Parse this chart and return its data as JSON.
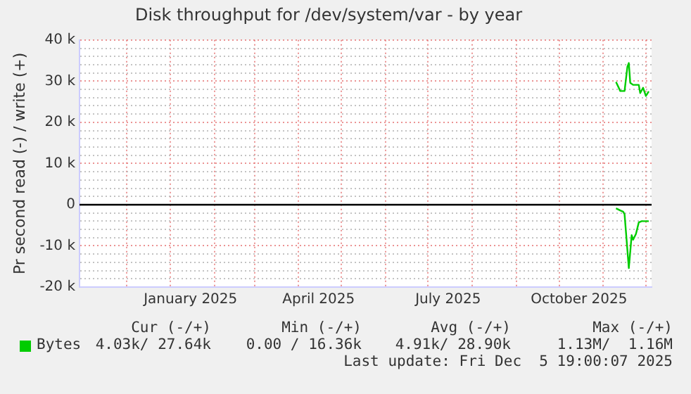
{
  "chart_data": {
    "type": "line",
    "title": "Disk throughput for /dev/system/var - by year",
    "ylabel": "Pr second read (-) / write (+)",
    "xlim": [
      "2024-10-29",
      "2025-12-05"
    ],
    "xticks": [
      {
        "value": "2024-12-01",
        "label": null
      },
      {
        "value": "2025-01-01",
        "label": null
      },
      {
        "value": "2025-01-15",
        "label": "January 2025"
      },
      {
        "value": "2025-02-01",
        "label": null
      },
      {
        "value": "2025-03-01",
        "label": null
      },
      {
        "value": "2025-04-01",
        "label": null
      },
      {
        "value": "2025-04-15",
        "label": "April 2025"
      },
      {
        "value": "2025-05-01",
        "label": null
      },
      {
        "value": "2025-06-01",
        "label": null
      },
      {
        "value": "2025-07-01",
        "label": null
      },
      {
        "value": "2025-07-15",
        "label": "July 2025"
      },
      {
        "value": "2025-08-01",
        "label": null
      },
      {
        "value": "2025-09-01",
        "label": null
      },
      {
        "value": "2025-10-01",
        "label": null
      },
      {
        "value": "2025-10-15",
        "label": "October 2025"
      },
      {
        "value": "2025-11-01",
        "label": null
      },
      {
        "value": "2025-12-01",
        "label": null
      }
    ],
    "ylim": [
      -20000,
      40000
    ],
    "yticks": [
      {
        "value": -20000,
        "label": "-20 k"
      },
      {
        "value": -18000,
        "label": null
      },
      {
        "value": -16000,
        "label": null
      },
      {
        "value": -14000,
        "label": null
      },
      {
        "value": -12000,
        "label": null
      },
      {
        "value": -10000,
        "label": "-10 k"
      },
      {
        "value": -8000,
        "label": null
      },
      {
        "value": -6000,
        "label": null
      },
      {
        "value": -4000,
        "label": null
      },
      {
        "value": -2000,
        "label": null
      },
      {
        "value": 0,
        "label": "0"
      },
      {
        "value": 2000,
        "label": null
      },
      {
        "value": 4000,
        "label": null
      },
      {
        "value": 6000,
        "label": null
      },
      {
        "value": 8000,
        "label": null
      },
      {
        "value": 10000,
        "label": "10 k"
      },
      {
        "value": 12000,
        "label": null
      },
      {
        "value": 14000,
        "label": null
      },
      {
        "value": 16000,
        "label": null
      },
      {
        "value": 18000,
        "label": null
      },
      {
        "value": 20000,
        "label": "20 k"
      },
      {
        "value": 22000,
        "label": null
      },
      {
        "value": 24000,
        "label": null
      },
      {
        "value": 26000,
        "label": null
      },
      {
        "value": 28000,
        "label": null
      },
      {
        "value": 30000,
        "label": "30 k"
      },
      {
        "value": 32000,
        "label": null
      },
      {
        "value": 34000,
        "label": null
      },
      {
        "value": 36000,
        "label": null
      },
      {
        "value": 38000,
        "label": null
      },
      {
        "value": 40000,
        "label": "40 k"
      }
    ],
    "grid": true,
    "legend": "bottom",
    "marker": "none",
    "line_style": "solid",
    "ref_lines": [
      {
        "axis": "y",
        "value": 0,
        "label": null,
        "color": "#000000"
      }
    ],
    "series": [
      {
        "name": "Bytes",
        "color": "#00cc00",
        "x": [
          "2025-11-10",
          "2025-11-13",
          "2025-11-16",
          "2025-11-18",
          "2025-11-19",
          "2025-11-20",
          "2025-11-22",
          "2025-11-26",
          "2025-11-27",
          "2025-11-29",
          "2025-12-01",
          "2025-12-03"
        ],
        "values": [
          29800,
          27600,
          27600,
          33500,
          34400,
          29600,
          29100,
          29100,
          27100,
          28400,
          26400,
          27500
        ]
      },
      {
        "color": "#00cc00",
        "x": [
          "2025-11-10",
          "2025-11-13",
          "2025-11-15",
          "2025-11-16",
          "2025-11-19",
          "2025-11-21",
          "2025-11-22",
          "2025-11-24",
          "2025-11-26",
          "2025-11-28",
          "2025-12-03"
        ],
        "values": [
          -900,
          -1400,
          -1700,
          -2300,
          -15400,
          -7400,
          -8500,
          -7100,
          -4300,
          -4000,
          -4000
        ]
      }
    ],
    "annotations": [
      "Cur (-/+)",
      "Min (-/+)",
      "Avg (-/+)",
      "Max (-/+)",
      "4.03k/ 27.64k",
      "0.00 / 16.36k",
      "4.91k/ 28.90k",
      "1.13M/  1.16M",
      "Last update: Fri Dec  5 19:00:07 2025"
    ]
  }
}
